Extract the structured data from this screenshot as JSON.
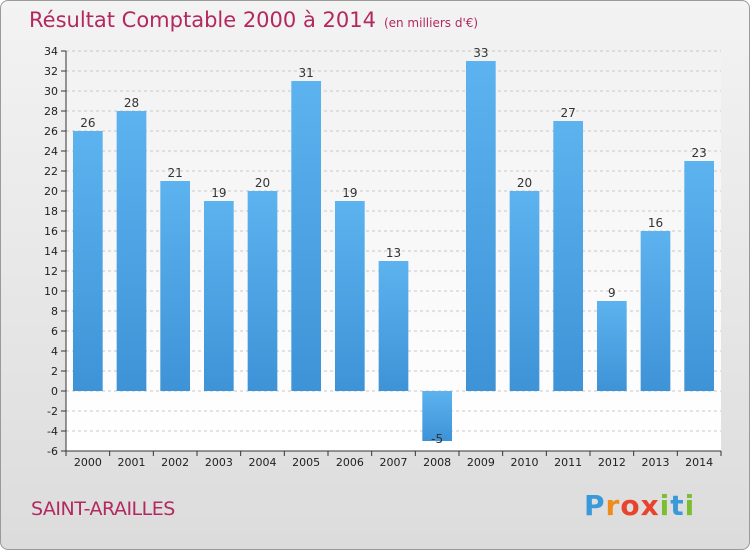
{
  "chart_data": {
    "type": "bar",
    "title": "Résultat Comptable 2000 à 2014",
    "subtitle": "(en milliers d'€)",
    "xlabel": "",
    "ylabel": "",
    "categories": [
      "2000",
      "2001",
      "2002",
      "2003",
      "2004",
      "2005",
      "2006",
      "2007",
      "2008",
      "2009",
      "2010",
      "2011",
      "2012",
      "2013",
      "2014"
    ],
    "values": [
      26,
      28,
      21,
      19,
      20,
      31,
      19,
      13,
      -5,
      33,
      20,
      27,
      9,
      16,
      23
    ],
    "value_labels": [
      "26",
      "28",
      "21",
      "19",
      "20",
      "31",
      "19",
      "13",
      "-5",
      "33",
      "20",
      "27",
      "9",
      "16",
      "23"
    ],
    "ylim": [
      -6,
      34
    ],
    "ytick_step": 2,
    "grid": true,
    "bar_color": "#3d93d6"
  },
  "commune": "SAINT-ARAILLES",
  "brand": {
    "letters": [
      "P",
      "r",
      "o",
      "x",
      "i",
      "t",
      "i"
    ],
    "colors": [
      "#3a9ad9",
      "#f08c1c",
      "#e8432b",
      "#e8432b",
      "#7cbd32",
      "#3a9ad9",
      "#7cbd32"
    ]
  },
  "colors": {
    "title": "#b3285e"
  }
}
